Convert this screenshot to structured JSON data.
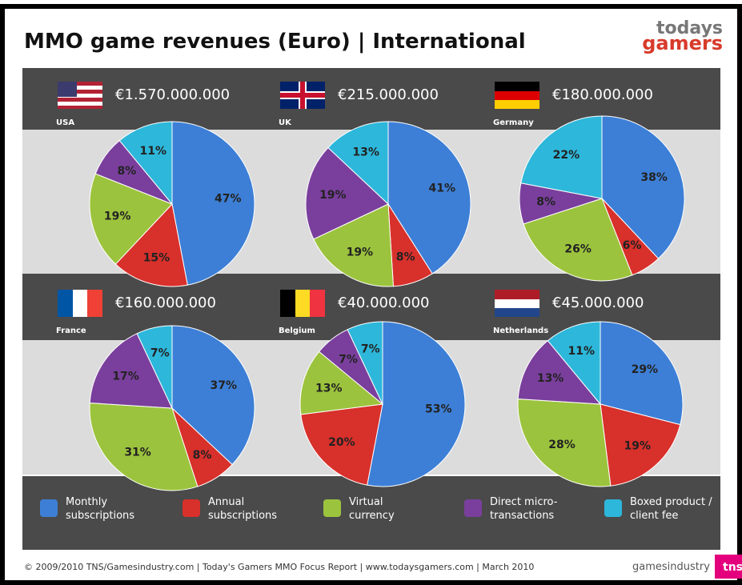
{
  "title": "MMO game revenues (Euro) | International",
  "footer": "© 2009/2010 TNS/Gamesindustry.com | Today's Gamers MMO Focus Report | www.todaysgamers.com  | March 2010",
  "logos": [
    "todays",
    "gamers",
    "gamesindustry",
    "tns"
  ],
  "legend": [
    {
      "label": "Monthly subscriptions",
      "color": "#3d7fd6"
    },
    {
      "label": "Annual subscriptions",
      "color": "#d8302b"
    },
    {
      "label": "Virtual currency",
      "color": "#9cc33d"
    },
    {
      "label": "Direct micro-transactions",
      "color": "#7a3f9d"
    },
    {
      "label": "Boxed product / client fee",
      "color": "#2db7da"
    }
  ],
  "chart_data": [
    {
      "type": "pie",
      "title": "USA",
      "subtitle": "€1.570.000.000",
      "values": [
        47,
        15,
        19,
        8,
        11
      ],
      "value_labels": [
        "47%",
        "15%",
        "19%",
        "8%",
        "11%"
      ]
    },
    {
      "type": "pie",
      "title": "UK",
      "subtitle": "€215.000.000",
      "values": [
        41,
        8,
        19,
        19,
        13
      ],
      "value_labels": [
        "41%",
        "8%",
        "19%",
        "19%",
        "13%"
      ]
    },
    {
      "type": "pie",
      "title": "Germany",
      "subtitle": "€180.000.000",
      "values": [
        38,
        6,
        26,
        8,
        22
      ],
      "value_labels": [
        "38%",
        "6%",
        "26%",
        "8%",
        "22%"
      ]
    },
    {
      "type": "pie",
      "title": "France",
      "subtitle": "€160.000.000",
      "values": [
        37,
        8,
        31,
        17,
        7
      ],
      "value_labels": [
        "37%",
        "8%",
        "31%",
        "17%",
        "7%"
      ]
    },
    {
      "type": "pie",
      "title": "Belgium",
      "subtitle": "€40.000.000",
      "values": [
        53,
        20,
        13,
        7,
        7
      ],
      "value_labels": [
        "53%",
        "20%",
        "13%",
        "7%",
        "7%"
      ]
    },
    {
      "type": "pie",
      "title": "Netherlands",
      "subtitle": "€45.000.000",
      "values": [
        29,
        19,
        28,
        13,
        11
      ],
      "value_labels": [
        "29%",
        "19%",
        "28%",
        "13%",
        "11%"
      ]
    }
  ]
}
